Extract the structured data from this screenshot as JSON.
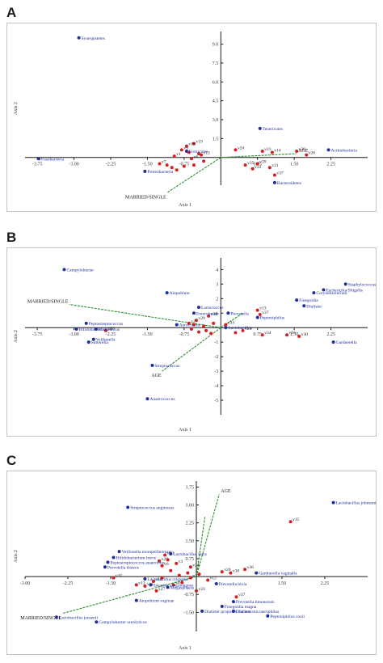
{
  "panels": [
    {
      "letter": "A"
    },
    {
      "letter": "B"
    },
    {
      "letter": "C"
    }
  ],
  "chart_data": [
    {
      "type": "scatter",
      "xlabel": "Axis 1",
      "ylabel": "Axis 2",
      "xlim": [
        -4.0,
        3.0
      ],
      "ylim": [
        -2.2,
        10.0
      ],
      "x_ticks": [
        -3.75,
        -3.0,
        -2.25,
        -1.5,
        -0.75,
        0.75,
        1.5,
        2.25
      ],
      "x_tick_labels": [
        "-3.75",
        "-3.00",
        "-2.25",
        "-1.50",
        "-0.75",
        "0.75",
        "1.50",
        "2.25"
      ],
      "y_ticks": [
        1.5,
        3.0,
        4.5,
        6.0,
        7.5,
        9.0
      ],
      "y_tick_labels": [
        "1.5",
        "3.0",
        "4.5",
        "6.0",
        "7.5",
        "9.0"
      ],
      "taxa": [
        {
          "label": "Synergistetes",
          "x": -2.9,
          "y": 9.5
        },
        {
          "label": "Fusobacteria",
          "x": -3.72,
          "y": -0.1
        },
        {
          "label": "Proteobacteria",
          "x": -1.55,
          "y": -1.1
        },
        {
          "label": "Tenericutes",
          "x": 0.8,
          "y": 2.3
        },
        {
          "label": "Actinobacteria",
          "x": 2.2,
          "y": 0.6
        },
        {
          "label": "Bacteroidetes",
          "x": 1.1,
          "y": -2.0
        },
        {
          "label": "Firmicutes",
          "x": -0.7,
          "y": 0.5
        }
      ],
      "samples": [
        {
          "label": "v30",
          "x": 1.55,
          "y": 0.5
        },
        {
          "label": "v26",
          "x": 1.75,
          "y": 0.2
        },
        {
          "label": "v24",
          "x": 0.3,
          "y": 0.6
        },
        {
          "label": "v23",
          "x": 0.85,
          "y": 0.5
        },
        {
          "label": "v14",
          "x": 1.05,
          "y": 0.4
        },
        {
          "label": "v35",
          "x": 0.5,
          "y": -0.6
        },
        {
          "label": "v39",
          "x": 0.75,
          "y": -0.5
        },
        {
          "label": "v33",
          "x": 0.65,
          "y": -0.9
        },
        {
          "label": "v21",
          "x": 1.0,
          "y": -0.8
        },
        {
          "label": "v37",
          "x": 1.1,
          "y": -1.4
        },
        {
          "label": "v19",
          "x": -0.55,
          "y": 1.1
        },
        {
          "label": "v16",
          "x": -0.7,
          "y": 0.9
        },
        {
          "label": "v3",
          "x": -0.8,
          "y": 0.6
        },
        {
          "label": "v7",
          "x": -1.25,
          "y": -0.5
        },
        {
          "label": "v1",
          "x": -0.95,
          "y": 0.1
        },
        {
          "label": "v8",
          "x": -0.6,
          "y": -0.1
        },
        {
          "label": "v12",
          "x": -0.4,
          "y": 0.2
        },
        {
          "label": "",
          "x": -1.0,
          "y": -0.8
        },
        {
          "label": "",
          "x": -0.9,
          "y": -1.0
        },
        {
          "label": "",
          "x": -0.75,
          "y": -0.7
        },
        {
          "label": "",
          "x": -0.55,
          "y": -0.6
        },
        {
          "label": "",
          "x": -0.45,
          "y": 0.3
        },
        {
          "label": "",
          "x": -0.35,
          "y": -0.3
        },
        {
          "label": "",
          "x": -1.1,
          "y": -0.6
        },
        {
          "label": "",
          "x": -0.65,
          "y": 0.4
        }
      ],
      "vectors": [
        {
          "label": "AGE",
          "x": 1.55,
          "y": 0.3
        },
        {
          "label": "MARRIED/SINGLE",
          "x": -1.1,
          "y": -2.8
        }
      ]
    },
    {
      "type": "scatter",
      "xlabel": "Axis 1",
      "ylabel": "Axis 2",
      "xlim": [
        -4.0,
        3.0
      ],
      "ylim": [
        -6.0,
        4.8
      ],
      "x_ticks": [
        -3.75,
        -3.0,
        -2.25,
        -1.5,
        -0.75,
        0.75,
        1.5,
        2.25
      ],
      "x_tick_labels": [
        "-3.75",
        "-3.00",
        "-2.25",
        "-1.50",
        "-0.75",
        "0.75",
        "1.50",
        "2.25"
      ],
      "y_ticks": [
        -5,
        -4,
        -3,
        -2,
        -1,
        1,
        2,
        3,
        4
      ],
      "y_tick_labels": [
        "-5",
        "-4",
        "-3",
        "-2",
        "-1",
        "1",
        "2",
        "3",
        "4"
      ],
      "taxa": [
        {
          "label": "Campylobacter",
          "x": -3.2,
          "y": 4.0
        },
        {
          "label": "Atopobium",
          "x": -1.1,
          "y": 2.4
        },
        {
          "label": "Staphylococcus",
          "x": 2.55,
          "y": 3.0
        },
        {
          "label": "Corynebacterium",
          "x": 1.9,
          "y": 2.4
        },
        {
          "label": "Escherichia/Shigella",
          "x": 2.1,
          "y": 2.6
        },
        {
          "label": "Finegoldia",
          "x": 1.55,
          "y": 1.9
        },
        {
          "label": "Dialister",
          "x": 1.7,
          "y": 1.5
        },
        {
          "label": "Peptoniphilus",
          "x": 0.75,
          "y": 0.7
        },
        {
          "label": "Prevotella",
          "x": 0.15,
          "y": 1.0
        },
        {
          "label": "Enterobacter",
          "x": -0.55,
          "y": 1.0
        },
        {
          "label": "Lactococcus",
          "x": -0.45,
          "y": 1.4
        },
        {
          "label": "Aerococcus",
          "x": -0.9,
          "y": 0.2
        },
        {
          "label": "Peptostreptococcus",
          "x": -2.75,
          "y": 0.3
        },
        {
          "label": "Bifidobacterium",
          "x": -2.95,
          "y": -0.1
        },
        {
          "label": "Mobiluncus",
          "x": -2.55,
          "y": -0.1
        },
        {
          "label": "Veillonella",
          "x": -2.6,
          "y": -0.8
        },
        {
          "label": "Sutterella",
          "x": -2.7,
          "y": -1.0
        },
        {
          "label": "Streptococcus",
          "x": -1.4,
          "y": -2.6
        },
        {
          "label": "Anaerococcus",
          "x": -1.5,
          "y": -4.9
        },
        {
          "label": "Gardnerella",
          "x": 2.3,
          "y": -1.0
        },
        {
          "label": "Lactobacillus",
          "x": 0.1,
          "y": 0.0
        }
      ],
      "samples": [
        {
          "label": "v13",
          "x": 0.75,
          "y": 1.2
        },
        {
          "label": "v37",
          "x": 0.8,
          "y": 0.9
        },
        {
          "label": "v33",
          "x": 0.1,
          "y": 0.2
        },
        {
          "label": "v34",
          "x": 0.85,
          "y": -0.5
        },
        {
          "label": "v16",
          "x": 1.35,
          "y": -0.5
        },
        {
          "label": "v30",
          "x": 1.6,
          "y": -0.6
        },
        {
          "label": "v24",
          "x": 0.45,
          "y": -0.2
        },
        {
          "label": "v36",
          "x": -0.25,
          "y": 0.8
        },
        {
          "label": "v29",
          "x": -0.5,
          "y": 0.5
        },
        {
          "label": "v2",
          "x": -0.65,
          "y": 0.3
        },
        {
          "label": "v26",
          "x": -2.35,
          "y": -0.2
        },
        {
          "label": "",
          "x": -0.6,
          "y": -0.1
        },
        {
          "label": "",
          "x": -0.45,
          "y": -0.3
        },
        {
          "label": "",
          "x": -0.3,
          "y": -0.2
        },
        {
          "label": "",
          "x": -0.35,
          "y": 0.1
        },
        {
          "label": "",
          "x": -0.2,
          "y": -0.4
        },
        {
          "label": "",
          "x": -0.55,
          "y": 0.2
        },
        {
          "label": "",
          "x": -0.15,
          "y": 0.3
        },
        {
          "label": "",
          "x": 0.3,
          "y": -0.35
        }
      ],
      "vectors": [
        {
          "label": "MARRIED/SINGLE",
          "x": -3.1,
          "y": 1.6
        },
        {
          "label": "AGE",
          "x": -1.2,
          "y": -3.0
        },
        {
          "label": "",
          "x": 0.45,
          "y": 1.0
        }
      ]
    },
    {
      "type": "scatter",
      "xlabel": "Axis 1",
      "ylabel": "Axis 2",
      "xlim": [
        -3.0,
        3.0
      ],
      "ylim": [
        -2.3,
        4.0
      ],
      "x_ticks": [
        -3.0,
        -2.25,
        -1.5,
        1.5,
        2.25
      ],
      "x_tick_labels": [
        "-3.00",
        "-2.25",
        "-1.50",
        "1.50",
        "2.25"
      ],
      "y_ticks": [
        -1.5,
        -0.75,
        0.75,
        1.5,
        2.25,
        3.0,
        3.75
      ],
      "y_tick_labels": [
        "-1.50",
        "-0.75",
        "0.75",
        "1.50",
        "2.25",
        "3.00",
        "3.75"
      ],
      "taxa": [
        {
          "label": "Lactobacillus johnsonii",
          "x": 2.4,
          "y": 3.1
        },
        {
          "label": "Streptococcus anginosus",
          "x": -1.2,
          "y": 2.9
        },
        {
          "label": "Veillonella montpellierensis",
          "x": -1.35,
          "y": 1.05
        },
        {
          "label": "Bifidobacterium breve",
          "x": -1.45,
          "y": 0.8
        },
        {
          "label": "Peptostreptococcus anaerobius",
          "x": -1.55,
          "y": 0.6
        },
        {
          "label": "Prevotella disiens",
          "x": -1.6,
          "y": 0.4
        },
        {
          "label": "Lactobacillus iners",
          "x": -0.45,
          "y": 0.95
        },
        {
          "label": "Gardnerella vaginalis",
          "x": 1.05,
          "y": 0.15
        },
        {
          "label": "Prevotella bivia",
          "x": 0.35,
          "y": -0.3
        },
        {
          "label": "Prevotella timonensis",
          "x": 0.65,
          "y": -1.05
        },
        {
          "label": "Finegoldia magna",
          "x": 0.45,
          "y": -1.25
        },
        {
          "label": "Dialister micraerophilus",
          "x": 0.65,
          "y": -1.45
        },
        {
          "label": "Dialister propionicifaciens",
          "x": 0.1,
          "y": -1.45
        },
        {
          "label": "Peptoniphilus coxii",
          "x": 1.25,
          "y": -1.65
        },
        {
          "label": "Atopobium vaginae",
          "x": -1.05,
          "y": -1.0
        },
        {
          "label": "Lactobacillus jensenii",
          "x": -2.45,
          "y": -1.7
        },
        {
          "label": "Campylobacter ureolyticus",
          "x": -1.75,
          "y": -1.9
        },
        {
          "label": "Lactobacillus crispatus",
          "x": -0.9,
          "y": -0.1
        },
        {
          "label": "Sneathia sanguinegens",
          "x": -0.8,
          "y": -0.35
        },
        {
          "label": "Megasphaera",
          "x": -0.5,
          "y": -0.45
        }
      ],
      "samples": [
        {
          "label": "v15",
          "x": 1.65,
          "y": 2.3
        },
        {
          "label": "v30",
          "x": 0.6,
          "y": 0.15
        },
        {
          "label": "v36",
          "x": 0.85,
          "y": 0.3
        },
        {
          "label": "v24",
          "x": -0.1,
          "y": 0.4
        },
        {
          "label": "v32",
          "x": -0.1,
          "y": -0.05
        },
        {
          "label": "v33",
          "x": 0.0,
          "y": -0.6
        },
        {
          "label": "v37",
          "x": 0.7,
          "y": -0.85
        },
        {
          "label": "v27",
          "x": -0.7,
          "y": -0.6
        },
        {
          "label": "v18",
          "x": -0.75,
          "y": -0.2
        },
        {
          "label": "v35",
          "x": -1.45,
          "y": -0.05
        },
        {
          "label": "v29",
          "x": -0.65,
          "y": 0.65
        },
        {
          "label": "v10",
          "x": -0.55,
          "y": 0.9
        },
        {
          "label": "v3",
          "x": -0.35,
          "y": 0.55
        },
        {
          "label": "v6",
          "x": -0.6,
          "y": 0.45
        },
        {
          "label": "v13",
          "x": -1.05,
          "y": -0.35
        },
        {
          "label": "v4",
          "x": -0.4,
          "y": -0.35
        },
        {
          "label": "v11",
          "x": -0.9,
          "y": -0.4
        },
        {
          "label": "v12",
          "x": 0.2,
          "y": -0.15
        },
        {
          "label": "v20",
          "x": 0.45,
          "y": 0.2
        },
        {
          "label": "",
          "x": -0.5,
          "y": 0.7
        },
        {
          "label": "",
          "x": -0.45,
          "y": 0.25
        },
        {
          "label": "",
          "x": -0.3,
          "y": 0.05
        },
        {
          "label": "",
          "x": -0.25,
          "y": -0.25
        },
        {
          "label": "",
          "x": -0.6,
          "y": -0.05
        },
        {
          "label": "",
          "x": -0.15,
          "y": 0.15
        },
        {
          "label": "",
          "x": 0.05,
          "y": 0.1
        }
      ],
      "vectors": [
        {
          "label": "AGE",
          "x": 0.4,
          "y": 3.45
        },
        {
          "label": "MARRIED/SINGLE",
          "x": -2.35,
          "y": -1.55
        },
        {
          "label": "",
          "x": 0.15,
          "y": 2.5
        }
      ]
    }
  ],
  "colors": {
    "taxon": "#1f2f9e",
    "sample": "#d42020",
    "vector": "#2f8f2f",
    "axis": "#1a1a1a",
    "frame": "#c4c4c4"
  }
}
